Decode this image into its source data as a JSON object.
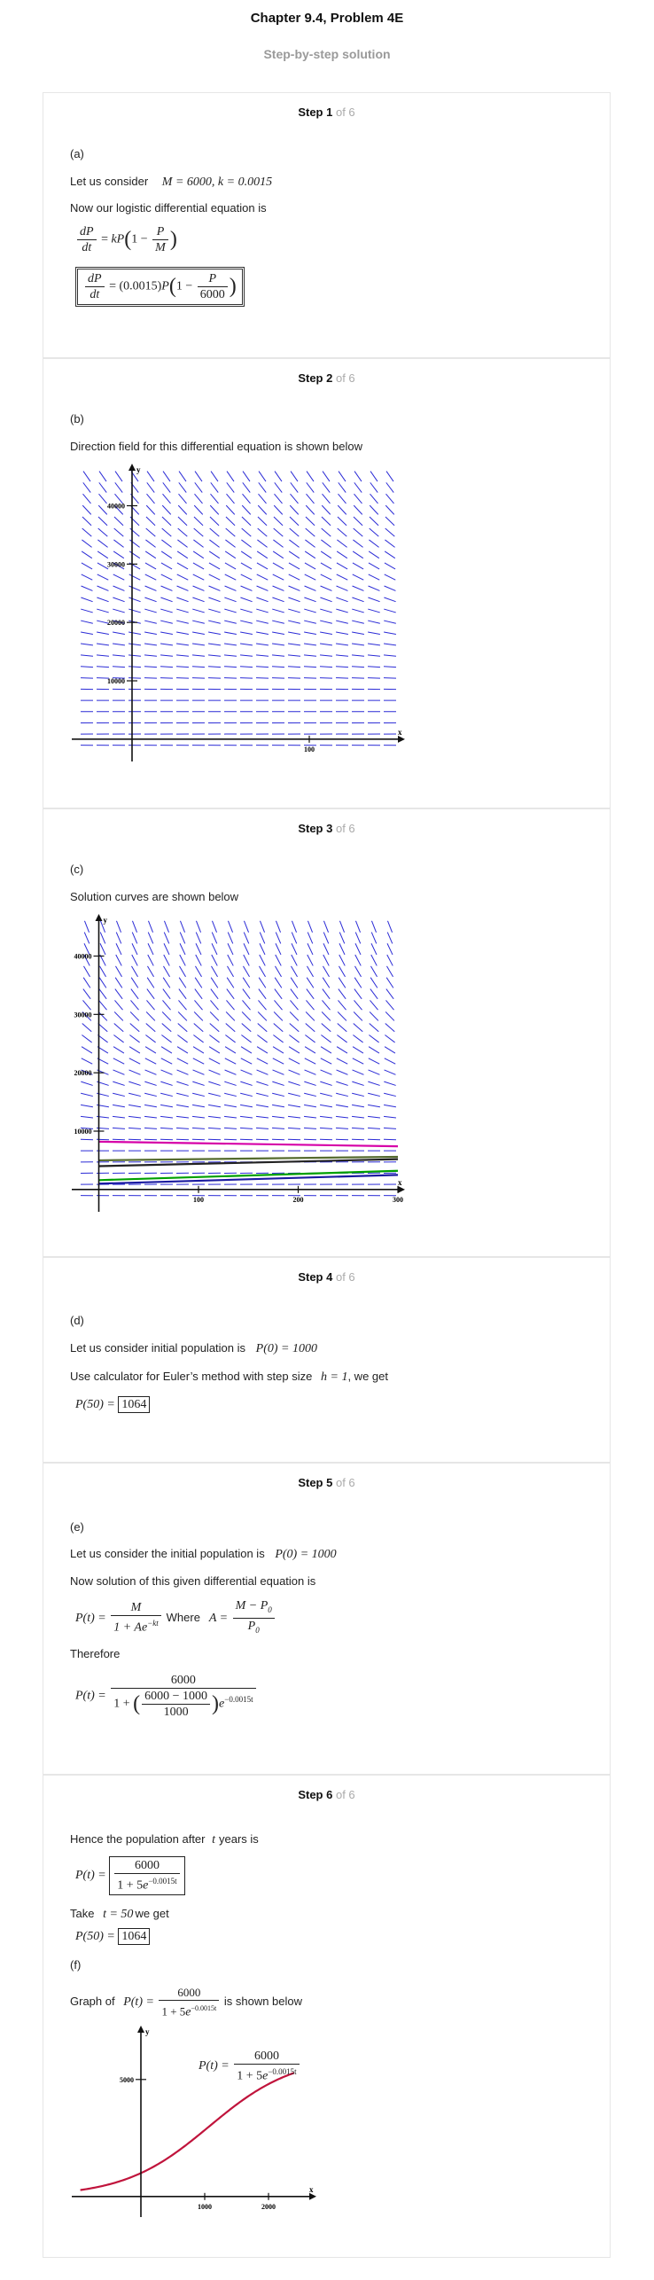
{
  "page": {
    "title": "Chapter 9.4, Problem 4E",
    "subtitle": "Step-by-step solution"
  },
  "step_of": "of 6",
  "steps": [
    {
      "label": "Step 1",
      "part": "(a)",
      "line1": "Let us consider",
      "line1_math": "M = 6000, k = 0.0015",
      "line2": "Now our logistic differential equation is"
    },
    {
      "label": "Step 2",
      "part": "(b)",
      "line1": "Direction field for this differential equation is shown below"
    },
    {
      "label": "Step 3",
      "part": "(c)",
      "line1": "Solution curves are shown below"
    },
    {
      "label": "Step 4",
      "part": "(d)",
      "line1": "Let us consider initial population is",
      "line1_math": "P(0) = 1000",
      "line2": "Use calculator for Euler’s method with step size",
      "line2_math": "h = 1",
      "line2_end": ", we get",
      "result_lhs": "P(50) =",
      "result_val": "1064"
    },
    {
      "label": "Step 5",
      "part": "(e)",
      "line1": "Let us consider the initial population is",
      "line1_math": "P(0) = 1000",
      "line2": "Now solution of this given differential equation is",
      "where": "Where",
      "therefore": "Therefore"
    },
    {
      "label": "Step 6",
      "line1": "Hence the population after",
      "line1_math": "t",
      "line1_end": "years is",
      "take": "Take",
      "take_math": "t = 50",
      "take_end": "we get",
      "result_lhs": "P(50) =",
      "result_val": "1064",
      "part": "(f)",
      "graph_of": "Graph of",
      "graph_end": "is shown below"
    }
  ],
  "chart_data": [
    {
      "type": "direction_field",
      "xaxis_label": "x",
      "yaxis_label": "y",
      "x_ticks": [
        100
      ],
      "y_ticks": [
        10000,
        20000,
        30000,
        40000
      ],
      "xlim": [
        -30,
        150
      ],
      "ylim": [
        -2000,
        46000
      ],
      "color": "#2b2bd6"
    },
    {
      "type": "direction_field",
      "xaxis_label": "x",
      "yaxis_label": "y",
      "x_ticks": [
        100,
        200,
        300
      ],
      "y_ticks": [
        10000,
        20000,
        30000,
        40000
      ],
      "xlim": [
        -20,
        300
      ],
      "ylim": [
        -2000,
        46000
      ],
      "color": "#2b2bd6",
      "series": [
        {
          "color": "#d600a8",
          "values": [
            [
              0,
              8200
            ],
            [
              300,
              7400
            ]
          ]
        },
        {
          "color": "#556b2f",
          "values": [
            [
              0,
              5000
            ],
            [
              300,
              5600
            ]
          ]
        },
        {
          "color": "#222222",
          "values": [
            [
              0,
              4000
            ],
            [
              300,
              5200
            ]
          ]
        },
        {
          "color": "#00a000",
          "values": [
            [
              0,
              1600
            ],
            [
              300,
              3200
            ]
          ]
        },
        {
          "color": "#1a1aa0",
          "values": [
            [
              0,
              1000
            ],
            [
              300,
              2500
            ]
          ]
        }
      ]
    },
    {
      "type": "line",
      "xaxis_label": "x",
      "yaxis_label": "y",
      "x_ticks": [
        1000,
        2000
      ],
      "y_ticks": [
        5000
      ],
      "xlim": [
        -1000,
        2500
      ],
      "ylim": [
        -500,
        7000
      ],
      "color": "#c0143c",
      "function": "6000/(1+5e^(-0.0015t))"
    }
  ],
  "colors": {
    "accent_gray": "#9a9a9a",
    "field_blue": "#2b2bd6",
    "curve_red": "#c0143c"
  }
}
